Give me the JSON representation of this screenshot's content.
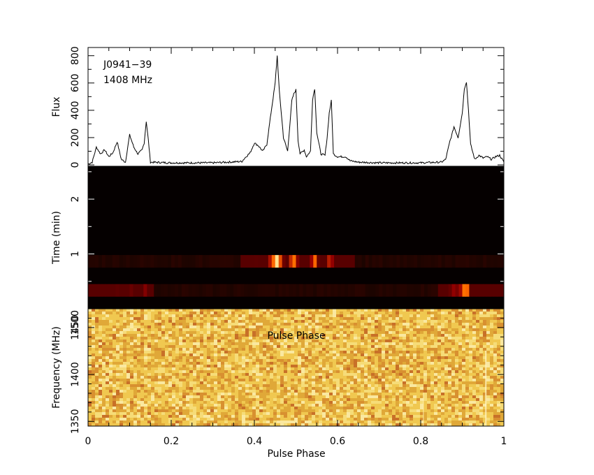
{
  "chart_data": [
    {
      "type": "line",
      "panel": "profile",
      "annotations": [
        "J0941−39",
        "1408 MHz"
      ],
      "ylabel": "Flux",
      "ylim": [
        -10,
        860
      ],
      "yticks": [
        0,
        200,
        400,
        600,
        800
      ],
      "xlim": [
        0,
        1
      ],
      "x": [
        0.0,
        0.01,
        0.02,
        0.03,
        0.04,
        0.05,
        0.06,
        0.07,
        0.08,
        0.09,
        0.095,
        0.1,
        0.11,
        0.12,
        0.13,
        0.135,
        0.14,
        0.145,
        0.15,
        0.2,
        0.3,
        0.37,
        0.38,
        0.39,
        0.4,
        0.41,
        0.42,
        0.43,
        0.44,
        0.45,
        0.455,
        0.46,
        0.47,
        0.48,
        0.49,
        0.495,
        0.5,
        0.505,
        0.51,
        0.52,
        0.525,
        0.53,
        0.535,
        0.54,
        0.545,
        0.55,
        0.56,
        0.57,
        0.575,
        0.58,
        0.585,
        0.59,
        0.6,
        0.62,
        0.63,
        0.65,
        0.7,
        0.8,
        0.85,
        0.86,
        0.87,
        0.875,
        0.88,
        0.89,
        0.9,
        0.905,
        0.91,
        0.915,
        0.92,
        0.93,
        0.94,
        0.95,
        0.96,
        0.97,
        0.98,
        0.99,
        1.0
      ],
      "series": [
        {
          "values": [
            5,
            20,
            130,
            80,
            110,
            60,
            90,
            170,
            40,
            20,
            120,
            220,
            130,
            80,
            110,
            160,
            320,
            180,
            20,
            15,
            15,
            25,
            60,
            90,
            160,
            140,
            100,
            150,
            380,
            600,
            800,
            540,
            200,
            100,
            470,
            520,
            550,
            180,
            80,
            110,
            60,
            80,
            100,
            480,
            560,
            240,
            80,
            70,
            200,
            380,
            470,
            80,
            60,
            60,
            30,
            20,
            15,
            15,
            20,
            40,
            170,
            220,
            280,
            200,
            380,
            560,
            610,
            400,
            150,
            40,
            70,
            50,
            60,
            40,
            60,
            70,
            20
          ]
        }
      ]
    },
    {
      "type": "heatmap",
      "panel": "time",
      "ylabel": "Time (min)",
      "ylim": [
        0,
        2.6
      ],
      "yticks": [
        1,
        2
      ],
      "xlim": [
        0,
        1
      ]
    },
    {
      "type": "heatmap",
      "panel": "frequency",
      "xlabel": "Pulse Phase",
      "ylabel": "Frequency (MHz)",
      "annotation": "Pulse Phase",
      "ylim": [
        1345,
        1470
      ],
      "yticks": [
        1350,
        1400,
        1450,
        1500
      ],
      "yticklabels": [
        "1350",
        "1400",
        "1450",
        "1500"
      ],
      "xlim": [
        0,
        1
      ],
      "xticks": [
        0,
        0.2,
        0.4,
        0.6,
        0.8,
        1
      ],
      "xticklabels": [
        "0",
        "0.2",
        "0.4",
        "0.6",
        "0.8",
        "1"
      ]
    }
  ],
  "colors": {
    "background": "#ffffff",
    "axes": "#000000",
    "profile_line": "#000000",
    "time_background": "#050000",
    "freq_base": "#e8b840"
  }
}
